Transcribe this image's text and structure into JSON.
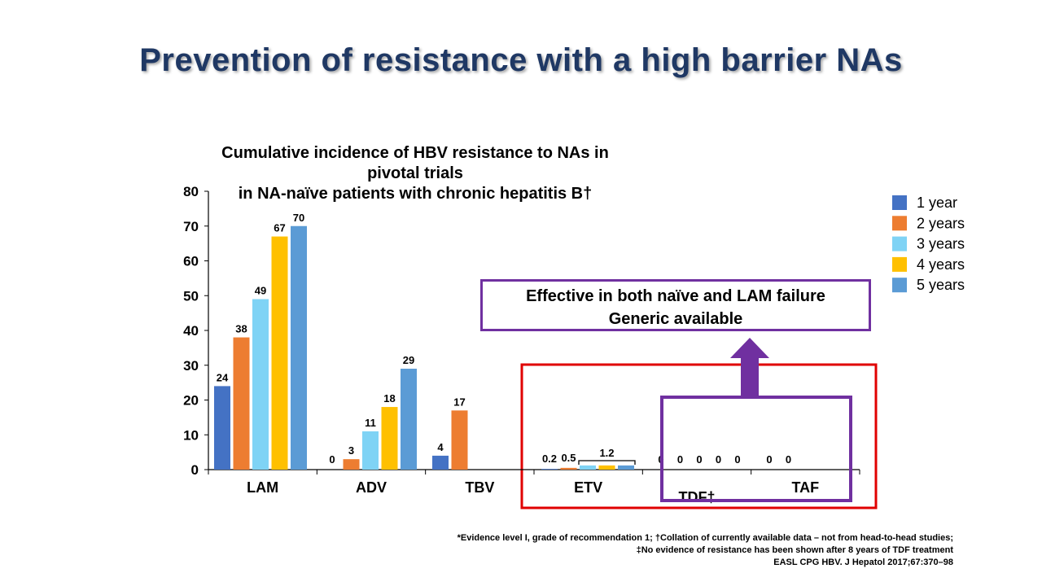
{
  "slide": {
    "title": "Prevention of resistance with a high barrier NAs",
    "callout_line1": "Effective in both naïve and LAM failure",
    "callout_line2": "Generic available",
    "footnote1": "*Evidence level I, grade of recommendation 1; †Collation of currently available data – not from head-to-head studies;",
    "footnote2": "‡No evidence of resistance has been shown after 8 years of TDF treatment",
    "footnote3": "EASL CPG HBV. J Hepatol 2017;67:370–98"
  },
  "colors": {
    "title": "#1f3864",
    "highlight_box": "#e00000",
    "tdf_taf_box": "#7030a0",
    "arrow": "#7030a0"
  },
  "chart_data": {
    "type": "bar",
    "title": "Cumulative incidence of HBV resistance to NAs in pivotal trials",
    "subtitle": "in NA-naïve patients with chronic hepatitis B†",
    "categories": [
      "LAM",
      "ADV",
      "TBV",
      "ETV",
      "TDF†",
      "TAF"
    ],
    "ylim": [
      0,
      80
    ],
    "yticks": [
      0,
      10,
      20,
      30,
      40,
      50,
      60,
      70,
      80
    ],
    "legend_position": "right",
    "series": [
      {
        "name": "1 year",
        "color": "#4472c4",
        "values": [
          24,
          0,
          4,
          0.2,
          0,
          0
        ],
        "labels": [
          "24",
          "0",
          "4",
          "0.2",
          "0",
          "0"
        ]
      },
      {
        "name": "2 years",
        "color": "#ed7d31",
        "values": [
          38,
          3,
          17,
          0.5,
          0,
          0
        ],
        "labels": [
          "38",
          "3",
          "17",
          "0.5",
          "0",
          "0"
        ]
      },
      {
        "name": "3 years",
        "color": "#7fd3f5",
        "values": [
          49,
          11,
          null,
          1.2,
          0,
          null
        ],
        "labels": [
          "49",
          "11",
          "",
          "",
          "0",
          ""
        ]
      },
      {
        "name": "4 years",
        "color": "#ffc000",
        "values": [
          67,
          18,
          null,
          1.2,
          0,
          null
        ],
        "labels": [
          "67",
          "18",
          "",
          "",
          "0",
          ""
        ]
      },
      {
        "name": "5 years",
        "color": "#5b9bd5",
        "values": [
          70,
          29,
          null,
          1.2,
          0,
          null
        ],
        "labels": [
          "70",
          "29",
          "",
          "",
          "0",
          ""
        ]
      }
    ],
    "annotations": [
      {
        "text": "1.2",
        "category": "ETV",
        "spans_series": [
          "3 years",
          "4 years",
          "5 years"
        ]
      }
    ]
  }
}
